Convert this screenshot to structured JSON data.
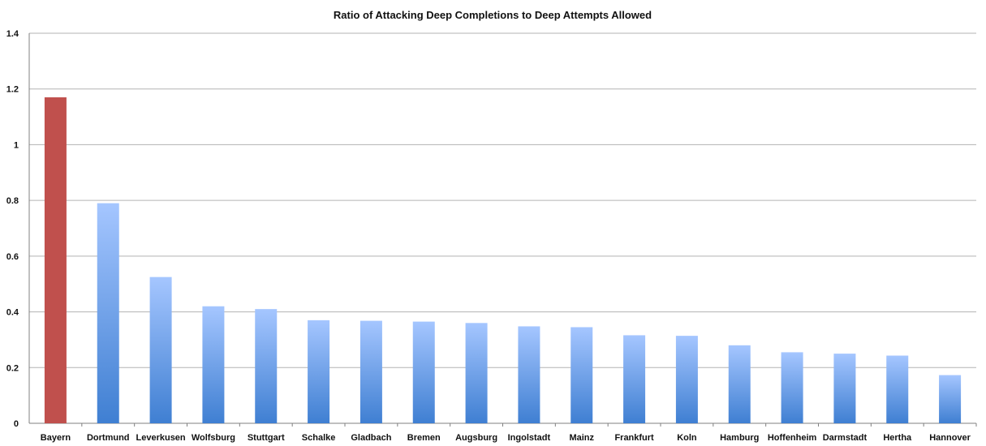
{
  "chart_data": {
    "type": "bar",
    "title": "Ratio of Attacking Deep Completions to Deep Attempts Allowed",
    "xlabel": "",
    "ylabel": "",
    "ylim": [
      0,
      1.4
    ],
    "yticks": [
      "0",
      "0.2",
      "0.4",
      "0.6",
      "0.8",
      "1",
      "1.2",
      "1.4"
    ],
    "grid": true,
    "legend": "none",
    "categories": [
      "Bayern",
      "Dortmund",
      "Leverkusen",
      "Wolfsburg",
      "Stuttgart",
      "Schalke",
      "Gladbach",
      "Bremen",
      "Augsburg",
      "Ingolstadt",
      "Mainz",
      "Frankfurt",
      "Koln",
      "Hamburg",
      "Hoffenheim",
      "Darmstadt",
      "Hertha",
      "Hannover"
    ],
    "values": [
      1.17,
      0.79,
      0.525,
      0.42,
      0.41,
      0.37,
      0.368,
      0.365,
      0.36,
      0.348,
      0.345,
      0.316,
      0.314,
      0.28,
      0.255,
      0.25,
      0.243,
      0.173
    ],
    "colors": {
      "highlight": "#c0504d",
      "bar_top": "#a5c6ff",
      "bar_bottom": "#3f7fd2",
      "grid": "#b3b3b3",
      "axis": "#808080"
    },
    "highlight_index": 0
  }
}
